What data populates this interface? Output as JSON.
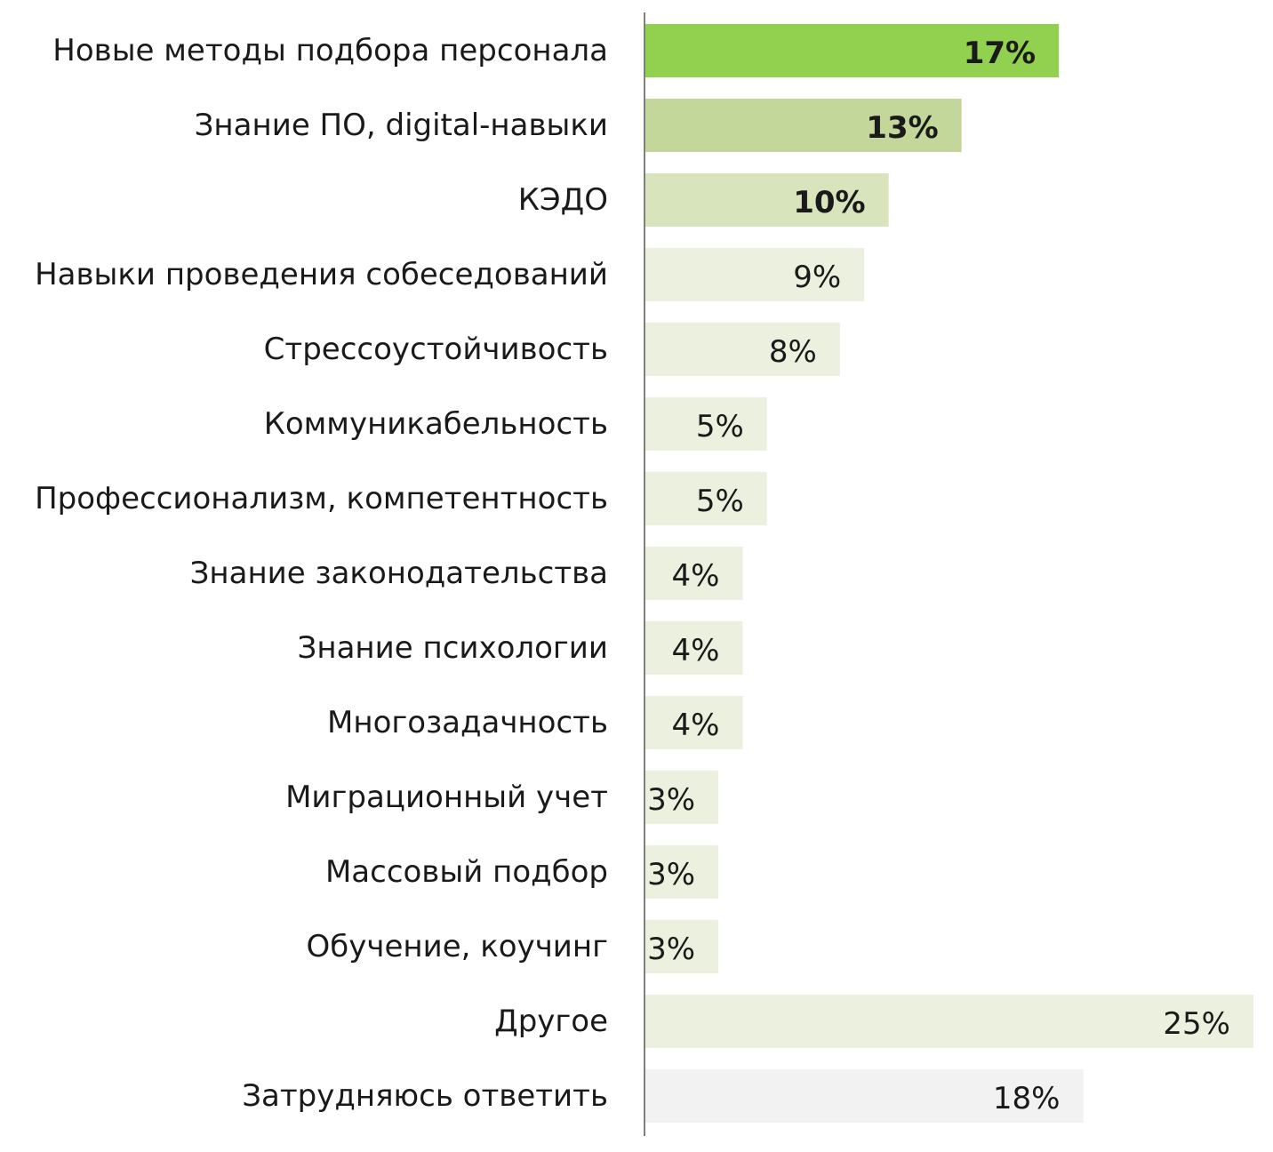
{
  "chart_data": {
    "type": "bar",
    "orientation": "horizontal",
    "categories": [
      "Новые методы подбора персонала",
      "Знание ПО, digital-навыки",
      "КЭДО",
      "Навыки проведения собеседований",
      "Стрессоустойчивость",
      "Коммуникабельность",
      "Профессионализм, компетентность",
      "Знание законодательства",
      "Знание психологии",
      "Многозадачность",
      "Миграционный учет",
      "Массовый подбор",
      "Обучение, коучинг",
      "Другое",
      "Затрудняюсь ответить"
    ],
    "values": [
      17,
      13,
      10,
      9,
      8,
      5,
      5,
      4,
      4,
      4,
      3,
      3,
      3,
      25,
      18
    ],
    "value_labels": [
      "17%",
      "13%",
      "10%",
      "9%",
      "8%",
      "5%",
      "5%",
      "4%",
      "4%",
      "4%",
      "3%",
      "3%",
      "3%",
      "25%",
      "18%"
    ],
    "bold": [
      true,
      true,
      true,
      false,
      false,
      false,
      false,
      false,
      false,
      false,
      false,
      false,
      false,
      false,
      false
    ],
    "colors": [
      "#92d050",
      "#c4d79b",
      "#d8e4bc",
      "#ebf1de",
      "#ebf1de",
      "#ebf1de",
      "#ebf1de",
      "#ebf1de",
      "#ebf1de",
      "#ebf1de",
      "#ebf1de",
      "#ebf1de",
      "#ebf1de",
      "#ebf1de",
      "#f2f2f2"
    ],
    "axis_color": "#7f7f7f",
    "xlim": [
      0,
      25
    ],
    "title": "",
    "xlabel": "",
    "ylabel": "",
    "grid": false,
    "legend": "none"
  }
}
